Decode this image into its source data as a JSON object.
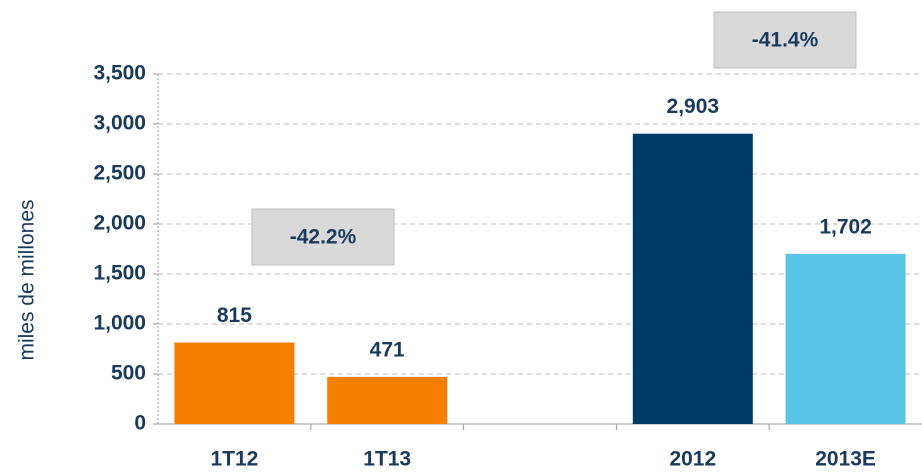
{
  "chart_data": {
    "type": "bar",
    "ylabel": "miles de millones",
    "categories": [
      "1T12",
      "1T13",
      null,
      "2012",
      "2013E"
    ],
    "values": [
      815,
      471,
      null,
      2903,
      1702
    ],
    "value_labels": [
      "815",
      "471",
      null,
      "2,903",
      "1,702"
    ],
    "colors": [
      "#f77f00",
      "#f77f00",
      null,
      "#003a66",
      "#5bc5e8"
    ],
    "ylim": [
      0,
      3500
    ],
    "yticks": [
      0,
      {
        "value": 500,
        "label": "500"
      },
      {
        "value": 1000,
        "label": "1,000"
      },
      {
        "value": 1500,
        "label": "1,500"
      },
      {
        "value": 2000,
        "label": "2,000"
      },
      {
        "value": 2500,
        "label": "2,500"
      },
      {
        "value": 3000,
        "label": "3,000"
      },
      {
        "value": 3500,
        "label": "3,500"
      }
    ],
    "grid": true,
    "annotations": [
      {
        "text": "-42.2%"
      },
      {
        "text": "-41.4%"
      }
    ]
  }
}
